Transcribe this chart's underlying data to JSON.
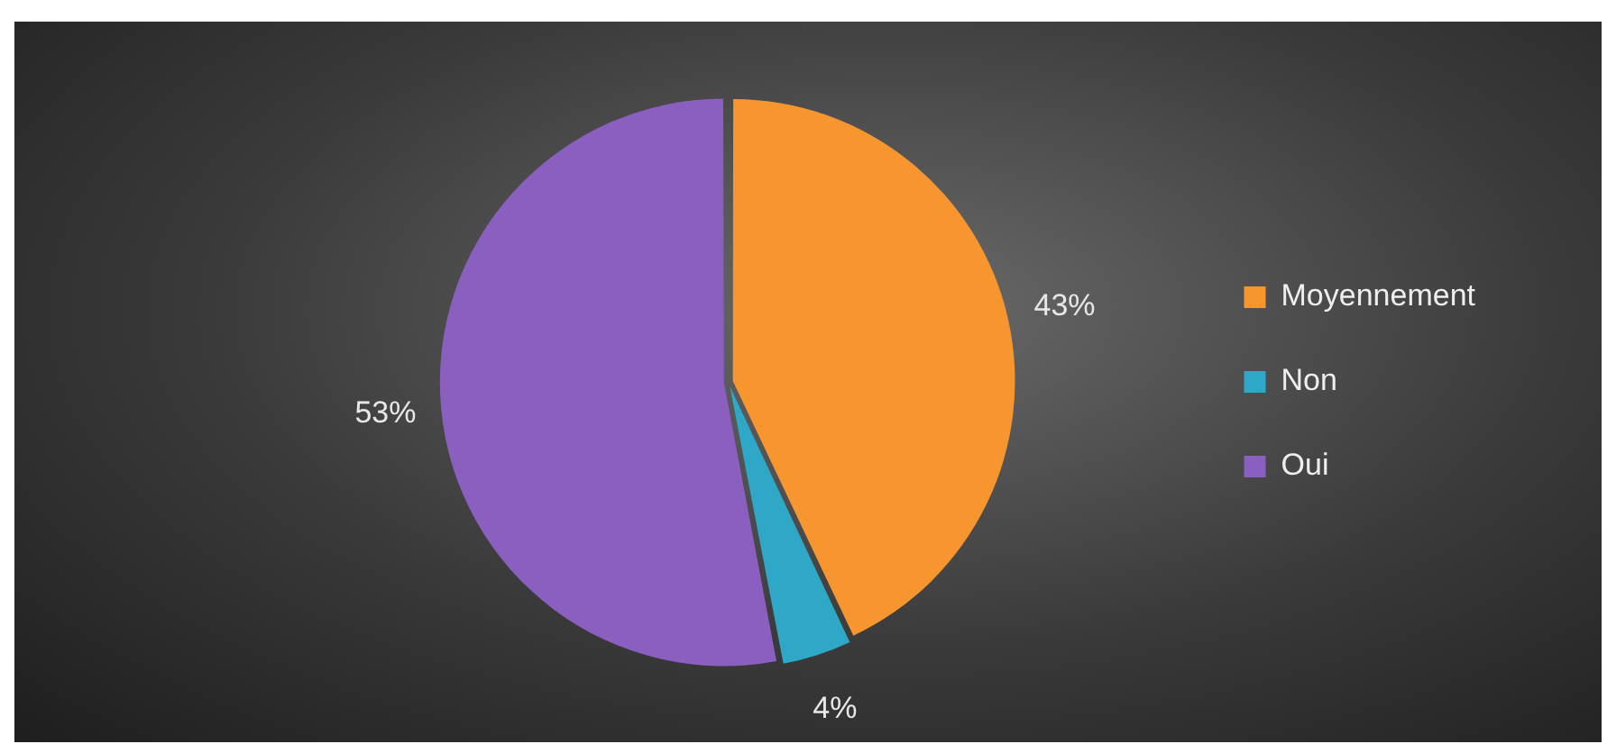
{
  "chart_data": {
    "type": "pie",
    "categories": [
      "Moyennement",
      "Non",
      "Oui"
    ],
    "values": [
      43,
      4,
      53
    ],
    "colors": [
      "#f7962f",
      "#2fa8c8",
      "#8a5fc0"
    ],
    "value_labels": [
      "43%",
      "4%",
      "53%"
    ],
    "legend": "right"
  }
}
